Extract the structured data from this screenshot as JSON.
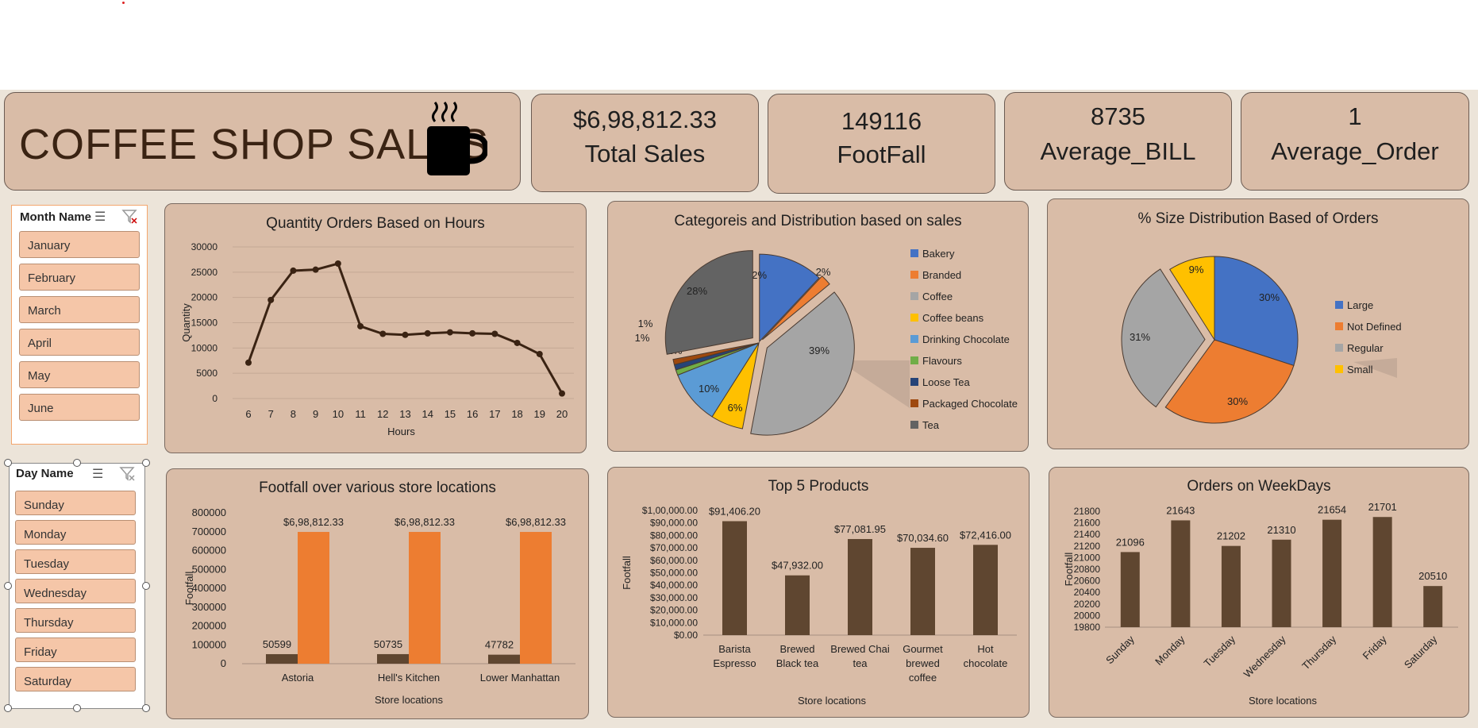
{
  "header": {
    "title": "COFFEE SHOP SALES",
    "icon": "coffee-mug-icon"
  },
  "kpis": [
    {
      "value": "$6,98,812.33",
      "label": "Total Sales"
    },
    {
      "value": "149116",
      "label": "FootFall"
    },
    {
      "value": "8735",
      "label": "Average_BILL"
    },
    {
      "value": "1",
      "label": "Average_Order"
    }
  ],
  "slicers": {
    "month": {
      "title": "Month Name",
      "items": [
        "January",
        "February",
        "March",
        "April",
        "May",
        "June"
      ]
    },
    "day": {
      "title": "Day Name",
      "items": [
        "Sunday",
        "Monday",
        "Tuesday",
        "Wednesday",
        "Thursday",
        "Friday",
        "Saturday"
      ]
    }
  },
  "panels": {
    "hours": {
      "title": "Quantity Orders Based on Hours"
    },
    "categories": {
      "title": "Categoreis and Distribution based on sales"
    },
    "size": {
      "title": "% Size Distribution Based of Orders"
    },
    "footfall": {
      "title": "Footfall over various store locations"
    },
    "top5": {
      "title": "Top 5 Products"
    },
    "weekdays": {
      "title": "Orders on  WeekDays"
    }
  },
  "colors": {
    "brown": "#5f4630",
    "orange": "#ed7d31",
    "panel": "#d9bca7"
  },
  "chart_data": [
    {
      "id": "hours",
      "type": "line",
      "title": "Quantity Orders Based on Hours",
      "xlabel": "Hours",
      "ylabel": "Quantity",
      "x": [
        6,
        7,
        8,
        9,
        10,
        11,
        12,
        13,
        14,
        15,
        16,
        17,
        18,
        19,
        20
      ],
      "values": [
        7100,
        19500,
        25300,
        25500,
        26700,
        14300,
        12800,
        12600,
        12900,
        13100,
        12900,
        12800,
        11000,
        8800,
        1000
      ],
      "ylim": [
        0,
        30000
      ],
      "yticks": [
        0,
        5000,
        10000,
        15000,
        20000,
        25000,
        30000
      ]
    },
    {
      "id": "categories",
      "type": "pie",
      "title": "Categoreis and Distribution based on sales",
      "slices": [
        {
          "name": "Bakery",
          "value": 12,
          "label": "12%",
          "color": "#4472c4"
        },
        {
          "name": "Branded",
          "value": 2,
          "label": "2%",
          "color": "#ed7d31"
        },
        {
          "name": "Coffee",
          "value": 39,
          "label": "39%",
          "color": "#a5a5a5"
        },
        {
          "name": "Coffee beans",
          "value": 6,
          "label": "6%",
          "color": "#ffc000"
        },
        {
          "name": "Drinking Chocolate",
          "value": 10,
          "label": "10%",
          "color": "#5b9bd5"
        },
        {
          "name": "Flavours",
          "value": 1,
          "label": "1%",
          "color": "#70ad47"
        },
        {
          "name": "Loose Tea",
          "value": 1,
          "label": "1%",
          "color": "#264478"
        },
        {
          "name": "Packaged Chocolate",
          "value": 1,
          "label": "1%",
          "color": "#9e480e"
        },
        {
          "name": "Tea",
          "value": 28,
          "label": "28%",
          "color": "#636363"
        }
      ],
      "legend": "right"
    },
    {
      "id": "size",
      "type": "pie",
      "title": "% Size Distribution Based of Orders",
      "slices": [
        {
          "name": "Large",
          "value": 30,
          "label": "30%",
          "color": "#4472c4"
        },
        {
          "name": "Not Defined",
          "value": 30,
          "label": "30%",
          "color": "#ed7d31"
        },
        {
          "name": "Regular",
          "value": 31,
          "label": "31%",
          "color": "#a5a5a5"
        },
        {
          "name": "Small",
          "value": 9,
          "label": "9%",
          "color": "#ffc000"
        }
      ],
      "legend": "right"
    },
    {
      "id": "footfall",
      "type": "bar",
      "title": "Footfall over various store locations",
      "xlabel": "Store locations",
      "ylabel": "Footfall",
      "categories": [
        "Astoria",
        "Hell's Kitchen",
        "Lower Manhattan"
      ],
      "series": [
        {
          "values": [
            50599,
            50735,
            47782
          ],
          "labels": [
            "50599",
            "50735",
            "47782"
          ],
          "color": "#5f4630"
        },
        {
          "values": [
            698812.33,
            698812.33,
            698812.33
          ],
          "labels": [
            "$6,98,812.33",
            "$6,98,812.33",
            "$6,98,812.33"
          ],
          "color": "#ed7d31"
        }
      ],
      "ylim": [
        0,
        800000
      ],
      "yticks": [
        0,
        100000,
        200000,
        300000,
        400000,
        500000,
        600000,
        700000,
        800000
      ]
    },
    {
      "id": "top5",
      "type": "bar",
      "title": "Top 5 Products",
      "xlabel": "Store locations",
      "ylabel": "Footfall",
      "categories": [
        [
          "Barista",
          "Espresso"
        ],
        [
          "Brewed",
          "Black tea"
        ],
        [
          "Brewed Chai",
          "tea"
        ],
        [
          "Gourmet",
          "brewed",
          "coffee"
        ],
        [
          "Hot",
          "chocolate"
        ]
      ],
      "values": [
        91406.2,
        47932.0,
        77081.95,
        70034.6,
        72416.0
      ],
      "labels": [
        "$91,406.20",
        "$47,932.00",
        "$77,081.95",
        "$70,034.60",
        "$72,416.00"
      ],
      "ylim": [
        0,
        100000
      ],
      "ytick_labels": [
        "$0.00",
        "$10,000.00",
        "$20,000.00",
        "$30,000.00",
        "$40,000.00",
        "$50,000.00",
        "$60,000.00",
        "$70,000.00",
        "$80,000.00",
        "$90,000.00",
        "$1,00,000.00"
      ]
    },
    {
      "id": "weekdays",
      "type": "bar",
      "title": "Orders on  WeekDays",
      "xlabel": "Store locations",
      "ylabel": "Footfall",
      "categories": [
        "Sunday",
        "Monday",
        "Tuesday",
        "Wednesday",
        "Thursday",
        "Friday",
        "Saturday"
      ],
      "values": [
        21096,
        21643,
        21202,
        21310,
        21654,
        21701,
        20510
      ],
      "ylim": [
        19800,
        21800
      ],
      "yticks": [
        19800,
        20000,
        20200,
        20400,
        20600,
        20800,
        21000,
        21200,
        21400,
        21600,
        21800
      ]
    }
  ]
}
